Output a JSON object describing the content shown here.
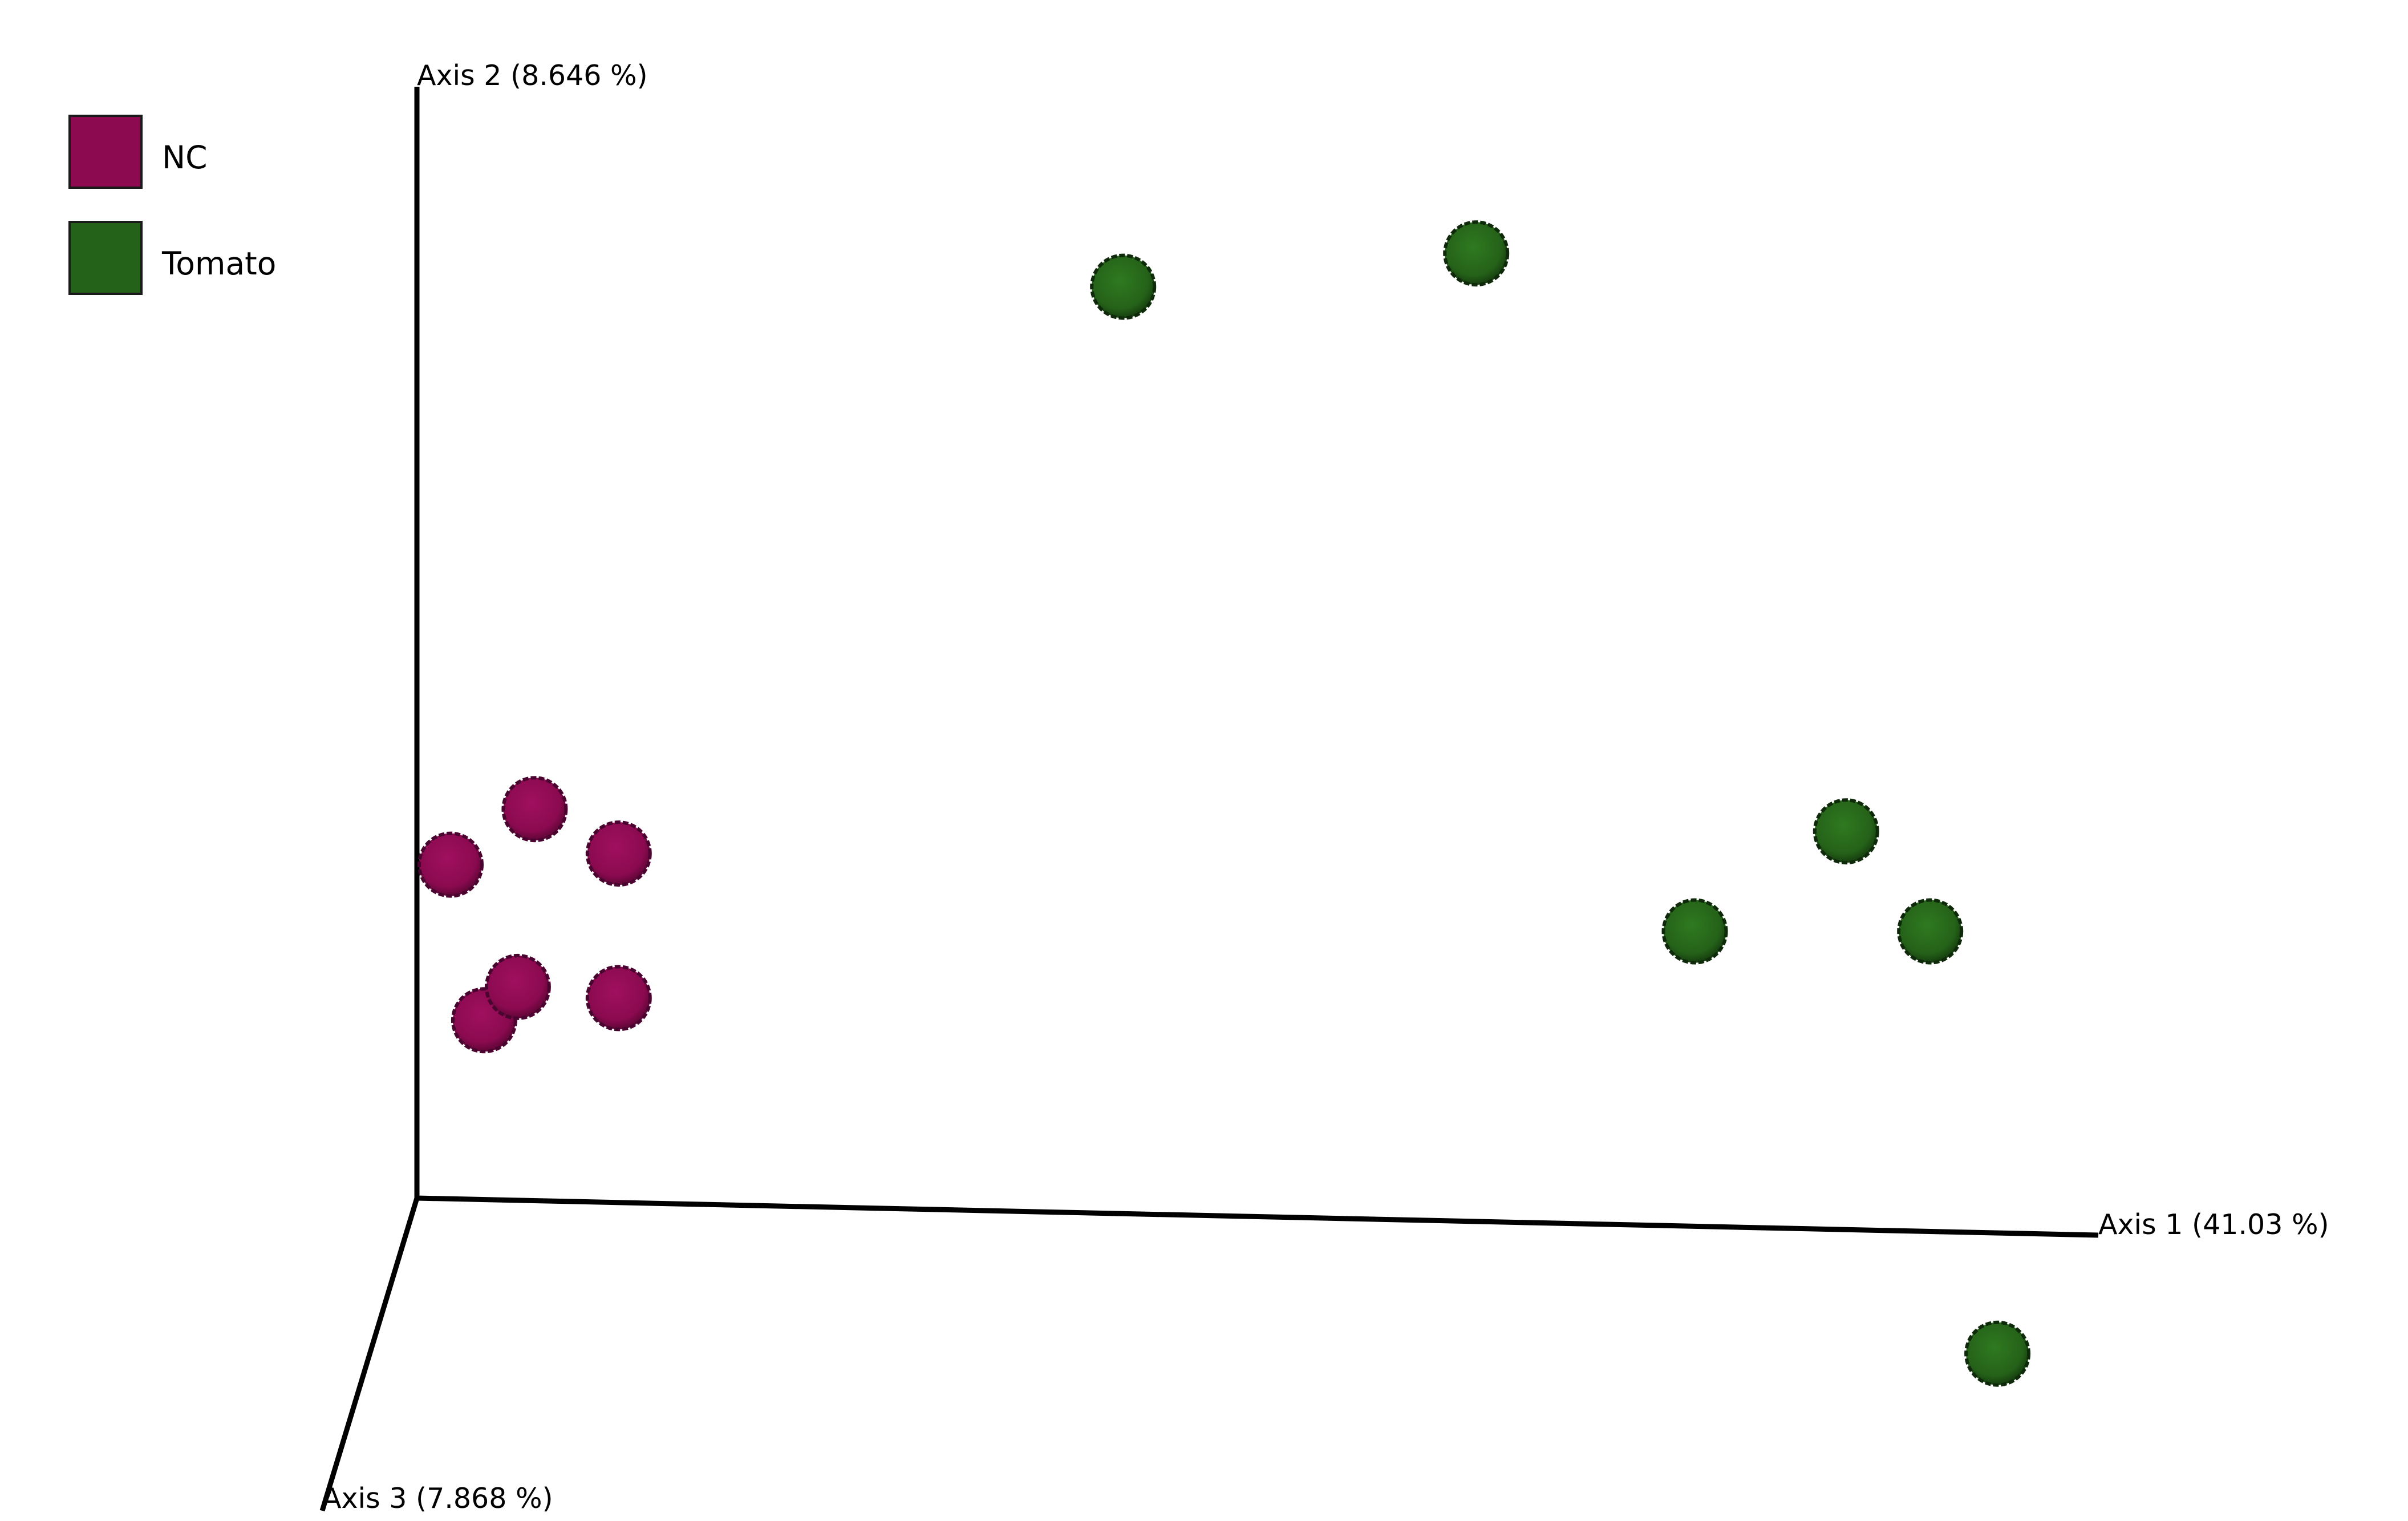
{
  "chart_data": {
    "type": "scatter",
    "projection": "3d",
    "axes": [
      {
        "label": "Axis 1 (41.03 %)"
      },
      {
        "label": "Axis 2 (8.646 %)"
      },
      {
        "label": "Axis 3 (7.868 %)"
      }
    ],
    "legend": {
      "placement": "top-left",
      "entries": [
        {
          "name": "NC",
          "color": "#8b0a50"
        },
        {
          "name": "Tomato",
          "color": "#256219"
        }
      ]
    },
    "series": [
      {
        "name": "NC",
        "color": "#8b0a50",
        "points": [
          {
            "x": 0.02,
            "y": 0.3
          },
          {
            "x": 0.07,
            "y": 0.35
          },
          {
            "x": 0.12,
            "y": 0.31
          },
          {
            "x": 0.04,
            "y": 0.16
          },
          {
            "x": 0.06,
            "y": 0.19
          },
          {
            "x": 0.12,
            "y": 0.18
          }
        ]
      },
      {
        "name": "Tomato",
        "color": "#256219",
        "points": [
          {
            "x": 0.42,
            "y": 0.82
          },
          {
            "x": 0.63,
            "y": 0.85
          },
          {
            "x": 0.85,
            "y": 0.33
          },
          {
            "x": 0.76,
            "y": 0.24
          },
          {
            "x": 0.9,
            "y": 0.24
          },
          {
            "x": 0.94,
            "y": -0.14
          }
        ]
      }
    ],
    "grid": false
  }
}
